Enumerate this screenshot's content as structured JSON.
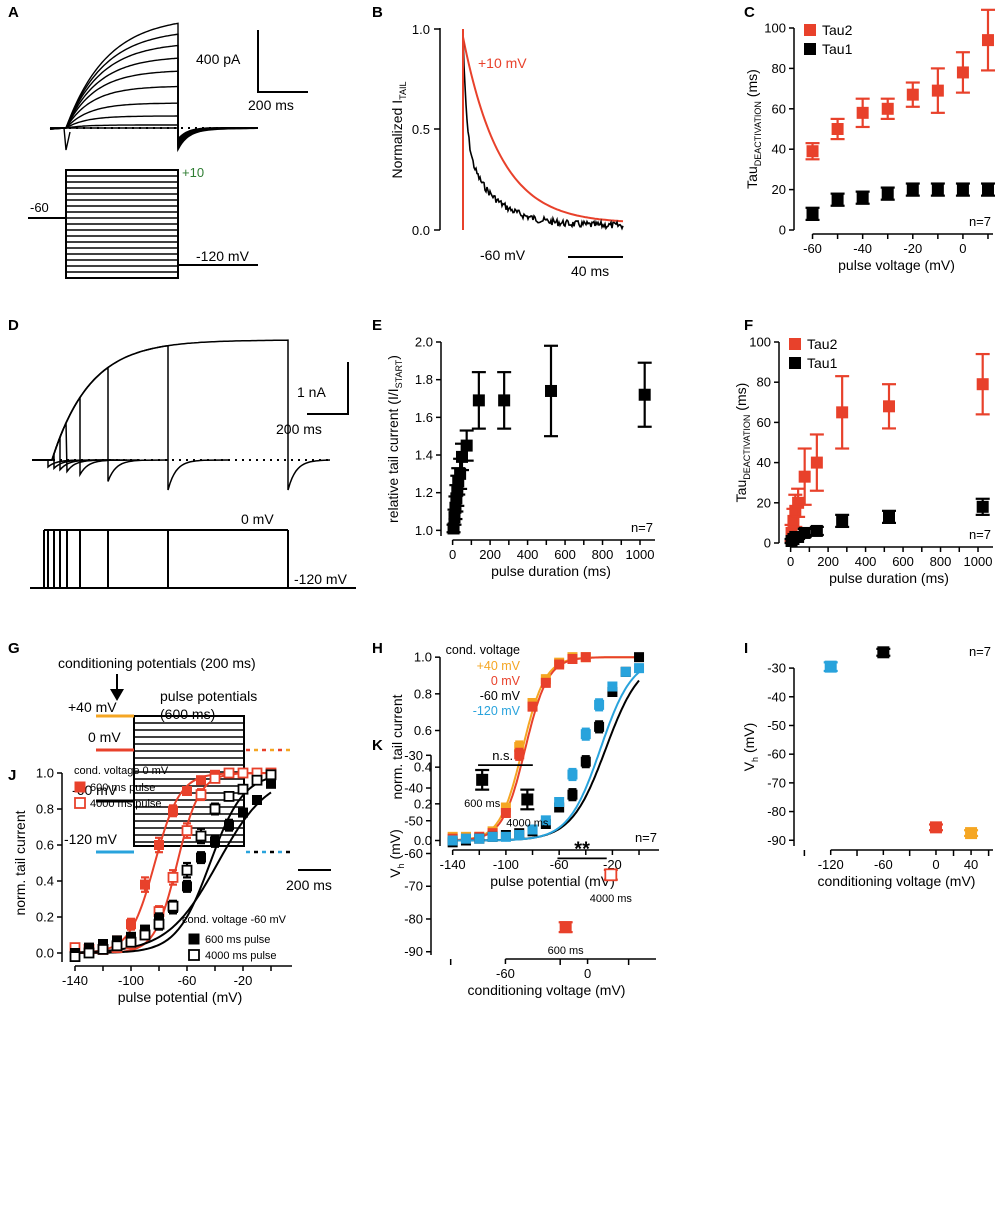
{
  "panels": {
    "A": {
      "label": "A",
      "scale_current": "400 pA",
      "scale_time": "200 ms",
      "v_hold": "-60",
      "v_top": "+10",
      "v_tail": "-120 mV"
    },
    "B": {
      "label": "B",
      "title": "Normalized I",
      "title_sub": "TAIL",
      "y_ticks": [
        "0.0",
        "0.5",
        "1.0"
      ],
      "trace_red": "+10 mV",
      "trace_black": "-60 mV",
      "scale_time": "40 ms"
    },
    "D": {
      "label": "D",
      "scale_current": "1 nA",
      "scale_time": "200 ms",
      "v_top": "0 mV",
      "v_tail": "-120 mV"
    },
    "G": {
      "label": "G",
      "conditioning": "conditioning potentials (200 ms)",
      "pulse1": "pulse potentials",
      "pulse2": "(600 ms)",
      "v40": "+40 mV",
      "v0": "0 mV",
      "vm60": "-60 mV",
      "vm120": "-120 mV",
      "scale_time": "200 ms"
    }
  },
  "colors": {
    "red": "#e8412b",
    "orange": "#f5a623",
    "blue": "#29a3dc",
    "black": "#000000"
  },
  "chart_data": [
    {
      "id": "C",
      "type": "scatter",
      "label": "C",
      "xlabel": "pulse voltage (mV)",
      "ylabel": "Tau",
      "ylabel_sub": "DEACTIVATION",
      "ylabel_unit": " (ms)",
      "xlim": [
        -65,
        12
      ],
      "ylim": [
        0,
        100
      ],
      "x_ticks": [
        -60,
        -40,
        -20,
        0
      ],
      "y_ticks": [
        0,
        20,
        40,
        60,
        80,
        100
      ],
      "n": "n=7",
      "legend": [
        "Tau2",
        "Tau1"
      ],
      "series": [
        {
          "name": "Tau2",
          "color": "red",
          "marker": "filled",
          "x": [
            -60,
            -50,
            -40,
            -30,
            -20,
            -10,
            0,
            10
          ],
          "y": [
            39,
            50,
            58,
            60,
            67,
            69,
            78,
            94
          ],
          "err": [
            4,
            5,
            7,
            5,
            6,
            11,
            10,
            15
          ]
        },
        {
          "name": "Tau1",
          "color": "black",
          "marker": "filled",
          "x": [
            -60,
            -50,
            -40,
            -30,
            -20,
            -10,
            0,
            10
          ],
          "y": [
            8,
            15,
            16,
            18,
            20,
            20,
            20,
            20
          ],
          "err": [
            3,
            3,
            3,
            3,
            3,
            3,
            3,
            3
          ]
        }
      ]
    },
    {
      "id": "E",
      "type": "scatter",
      "label": "E",
      "xlabel": "pulse duration (ms)",
      "ylabel": "relative tail current (I/I",
      "ylabel_sub": "START",
      "ylabel_unit": ")",
      "xlim": [
        -30,
        1080
      ],
      "ylim": [
        0.97,
        2.0
      ],
      "x_ticks": [
        0,
        200,
        400,
        600,
        800,
        1000
      ],
      "y_ticks": [
        1.0,
        1.2,
        1.4,
        1.6,
        1.8,
        2.0
      ],
      "n": "n=7",
      "series": [
        {
          "name": "relative tail current",
          "color": "black",
          "marker": "filled",
          "x": [
            5,
            10,
            15,
            20,
            25,
            30,
            40,
            50,
            75,
            140,
            275,
            525,
            1025
          ],
          "y": [
            1.01,
            1.07,
            1.12,
            1.17,
            1.21,
            1.26,
            1.3,
            1.39,
            1.45,
            1.69,
            1.69,
            1.74,
            1.72
          ],
          "err": [
            0.02,
            0.04,
            0.06,
            0.07,
            0.08,
            0.07,
            0.08,
            0.07,
            0.08,
            0.15,
            0.15,
            0.24,
            0.17
          ]
        }
      ]
    },
    {
      "id": "F",
      "type": "scatter",
      "label": "F",
      "xlabel": "pulse duration (ms)",
      "ylabel": "Tau",
      "ylabel_sub": "DEACTIVATION",
      "ylabel_unit": " (ms)",
      "xlim": [
        -30,
        1080
      ],
      "ylim": [
        0,
        100
      ],
      "x_ticks": [
        0,
        200,
        400,
        600,
        800,
        1000
      ],
      "y_ticks": [
        0,
        20,
        40,
        60,
        80,
        100
      ],
      "n": "n=7",
      "legend": [
        "Tau2",
        "Tau1"
      ],
      "series": [
        {
          "name": "Tau2",
          "color": "red",
          "marker": "filled",
          "x": [
            5,
            15,
            25,
            40,
            75,
            140,
            275,
            525,
            1025
          ],
          "y": [
            5,
            11,
            16,
            20,
            33,
            40,
            65,
            68,
            79
          ],
          "err": [
            4,
            6,
            8,
            7,
            14,
            14,
            18,
            11,
            15
          ]
        },
        {
          "name": "Tau1",
          "color": "black",
          "marker": "filled",
          "x": [
            5,
            15,
            25,
            40,
            75,
            140,
            275,
            525,
            1025
          ],
          "y": [
            1,
            2,
            3,
            3,
            5,
            6,
            11,
            13,
            18
          ],
          "err": [
            1,
            1,
            1,
            1,
            2,
            2,
            3,
            3,
            4
          ]
        }
      ]
    },
    {
      "id": "H",
      "type": "line",
      "label": "H",
      "xlabel": "pulse potential (mV)",
      "ylabel": "norm. tail current",
      "xlim": [
        -145,
        15
      ],
      "ylim": [
        -0.03,
        1.05
      ],
      "x_ticks": [
        -140,
        -100,
        -60,
        -20
      ],
      "y_ticks": [
        0.0,
        0.2,
        0.4,
        0.6,
        0.8,
        1.0
      ],
      "n": "n=7",
      "legend_title": "cond. voltage",
      "legend": [
        "+40 mV",
        "0 mV",
        "-60 mV",
        "-120 mV"
      ],
      "series": [
        {
          "name": "+40 mV",
          "color": "orange",
          "marker": "filled",
          "fit": {
            "vh": -87.5,
            "k": 8.5
          },
          "x": [
            -140,
            -130,
            -120,
            -110,
            -100,
            -90,
            -80,
            -70,
            -60,
            -50,
            -40
          ],
          "y": [
            0.02,
            0.02,
            0.02,
            0.05,
            0.18,
            0.51,
            0.75,
            0.88,
            0.97,
            1.0,
            1.0
          ],
          "err": [
            0.01,
            0.01,
            0.01,
            0.01,
            0.02,
            0.03,
            0.02,
            0.02,
            0.01,
            0.01,
            0.01
          ]
        },
        {
          "name": "0 mV",
          "color": "red",
          "marker": "filled",
          "fit": {
            "vh": -85.5,
            "k": 8.5
          },
          "x": [
            -140,
            -130,
            -120,
            -110,
            -100,
            -90,
            -80,
            -70,
            -60,
            -50,
            -40
          ],
          "y": [
            0.01,
            0.01,
            0.02,
            0.04,
            0.15,
            0.47,
            0.73,
            0.86,
            0.96,
            0.99,
            1.0
          ],
          "err": [
            0.01,
            0.01,
            0.01,
            0.01,
            0.02,
            0.03,
            0.02,
            0.02,
            0.01,
            0.01,
            0.01
          ]
        },
        {
          "name": "-60 mV",
          "color": "black",
          "marker": "filled",
          "fit": {
            "vh": -25,
            "k": 13
          },
          "x": [
            -140,
            -130,
            -120,
            -110,
            -100,
            -90,
            -80,
            -70,
            -60,
            -50,
            -40,
            -30,
            -20,
            -10,
            0
          ],
          "y": [
            -0.01,
            0.0,
            0.01,
            0.02,
            0.03,
            0.04,
            0.05,
            0.09,
            0.18,
            0.25,
            0.43,
            0.62,
            0.81,
            0.92,
            1.0
          ],
          "err": [
            0.01,
            0.01,
            0.01,
            0.01,
            0.01,
            0.01,
            0.01,
            0.02,
            0.02,
            0.03,
            0.03,
            0.03,
            0.02,
            0.02,
            0.01
          ]
        },
        {
          "name": "-120 mV",
          "color": "blue",
          "marker": "filled",
          "fit": {
            "vh": -29,
            "k": 12
          },
          "x": [
            -140,
            -130,
            -120,
            -110,
            -100,
            -90,
            -80,
            -70,
            -60,
            -50,
            -40,
            -30,
            -20,
            -10,
            0
          ],
          "y": [
            0.0,
            0.01,
            0.01,
            0.02,
            0.02,
            0.03,
            0.06,
            0.11,
            0.21,
            0.36,
            0.58,
            0.74,
            0.84,
            0.92,
            0.94
          ],
          "err": [
            0.01,
            0.01,
            0.01,
            0.01,
            0.01,
            0.01,
            0.01,
            0.02,
            0.02,
            0.03,
            0.03,
            0.03,
            0.02,
            0.02,
            0.02
          ]
        }
      ]
    },
    {
      "id": "I",
      "type": "scatter",
      "label": "I",
      "xlabel": "conditioning voltage (mV)",
      "ylabel": "V",
      "ylabel_sub": "h",
      "ylabel_unit": " (mV)",
      "xlim": [
        -155,
        65
      ],
      "ylim": [
        -92,
        -23
      ],
      "x_ticks": [
        -120,
        -60,
        0,
        40
      ],
      "y_ticks": [
        -90,
        -80,
        -70,
        -60,
        -50,
        -40,
        -30
      ],
      "n": "n=7",
      "series": [
        {
          "name": "-120 mV",
          "color": "blue",
          "marker": "filled",
          "x": [
            -120
          ],
          "y": [
            -29.5
          ],
          "err": [
            1.5
          ]
        },
        {
          "name": "-60 mV",
          "color": "black",
          "marker": "filled",
          "x": [
            -60
          ],
          "y": [
            -24.5
          ],
          "err": [
            1.2
          ]
        },
        {
          "name": "0 mV",
          "color": "red",
          "marker": "filled",
          "x": [
            0
          ],
          "y": [
            -85.5
          ],
          "err": [
            1.0
          ]
        },
        {
          "name": "+40 mV",
          "color": "orange",
          "marker": "filled",
          "x": [
            40
          ],
          "y": [
            -87.5
          ],
          "err": [
            1.0
          ]
        }
      ]
    },
    {
      "id": "J",
      "type": "line",
      "label": "J",
      "xlabel": "pulse potential (mV)",
      "ylabel": "norm. tail current",
      "xlim": [
        -145,
        15
      ],
      "ylim": [
        -0.05,
        1.05
      ],
      "x_ticks": [
        -140,
        -100,
        -60,
        -20
      ],
      "y_ticks": [
        0.0,
        0.2,
        0.4,
        0.6,
        0.8,
        1.0
      ],
      "legend_title_top": "cond. voltage 0 mV",
      "legend_title_bottom": "cond. voltage -60 mV",
      "legend": [
        "600 ms pulse",
        "4000 ms pulse",
        "600 ms pulse",
        "4000 ms pulse"
      ],
      "series": [
        {
          "name": "0 mV 600 ms pulse",
          "color": "red",
          "marker": "filled",
          "fit": {
            "vh": -83,
            "k": 9
          },
          "x": [
            -140,
            -130,
            -120,
            -110,
            -100,
            -90,
            -80,
            -70,
            -60,
            -50,
            -40,
            -30,
            -20,
            -10,
            0
          ],
          "y": [
            0.02,
            0.02,
            0.04,
            0.07,
            0.16,
            0.38,
            0.6,
            0.79,
            0.9,
            0.96,
            0.99,
            1.0,
            1.0,
            1.0,
            1.0
          ],
          "err": [
            0.01,
            0.01,
            0.01,
            0.01,
            0.03,
            0.04,
            0.04,
            0.03,
            0.02,
            0.01,
            0.01,
            0.01,
            0.01,
            0.01,
            0.01
          ]
        },
        {
          "name": "0 mV 4000 ms pulse",
          "color": "red",
          "marker": "open",
          "fit": {
            "vh": -67,
            "k": 8
          },
          "x": [
            -140,
            -130,
            -120,
            -110,
            -100,
            -90,
            -80,
            -70,
            -60,
            -50,
            -40,
            -30,
            -20,
            -10,
            0
          ],
          "y": [
            0.03,
            0.02,
            0.02,
            0.03,
            0.05,
            0.1,
            0.23,
            0.42,
            0.68,
            0.88,
            0.97,
            1.0,
            1.0,
            1.0,
            1.0
          ],
          "err": [
            0.01,
            0.01,
            0.01,
            0.01,
            0.01,
            0.02,
            0.03,
            0.04,
            0.04,
            0.03,
            0.02,
            0.01,
            0.01,
            0.01,
            0.01
          ]
        },
        {
          "name": "-60 mV 600 ms pulse",
          "color": "black",
          "marker": "filled",
          "fit": {
            "vh": -38,
            "k": 18
          },
          "x": [
            -140,
            -130,
            -120,
            -110,
            -100,
            -90,
            -80,
            -70,
            -60,
            -50,
            -40,
            -30,
            -20,
            -10,
            0
          ],
          "y": [
            0.0,
            0.03,
            0.05,
            0.07,
            0.09,
            0.13,
            0.19,
            0.25,
            0.37,
            0.53,
            0.62,
            0.71,
            0.78,
            0.85,
            0.94
          ],
          "err": [
            0.02,
            0.02,
            0.02,
            0.02,
            0.02,
            0.02,
            0.03,
            0.03,
            0.03,
            0.03,
            0.03,
            0.03,
            0.02,
            0.02,
            0.02
          ]
        },
        {
          "name": "-60 mV 4000 ms pulse",
          "color": "black",
          "marker": "open",
          "fit": {
            "vh": -43.5,
            "k": 12
          },
          "x": [
            -140,
            -130,
            -120,
            -110,
            -100,
            -90,
            -80,
            -70,
            -60,
            -50,
            -40,
            -30,
            -20,
            -10,
            0
          ],
          "y": [
            -0.02,
            0.0,
            0.02,
            0.04,
            0.06,
            0.1,
            0.16,
            0.26,
            0.46,
            0.65,
            0.8,
            0.87,
            0.91,
            0.96,
            0.99
          ],
          "err": [
            0.02,
            0.02,
            0.02,
            0.02,
            0.02,
            0.02,
            0.03,
            0.03,
            0.04,
            0.04,
            0.03,
            0.02,
            0.02,
            0.02,
            0.02
          ]
        }
      ]
    },
    {
      "id": "K",
      "type": "scatter",
      "label": "K",
      "xlabel": "conditioning voltage (mV)",
      "ylabel": "V",
      "ylabel_sub": "h",
      "ylabel_unit": " (mV)",
      "xlim": [
        -110,
        50
      ],
      "ylim": [
        -91,
        -29
      ],
      "x_ticks": [
        -60,
        0
      ],
      "y_ticks": [
        -90,
        -80,
        -70,
        -60,
        -50,
        -40,
        -30
      ],
      "sig_ns": "n.s.",
      "sig_star": "**",
      "series": [
        {
          "name": "-60 mV 600 ms",
          "color": "black",
          "marker": "filled",
          "x": [
            -77
          ],
          "y": [
            -37.5
          ],
          "err": [
            3
          ],
          "point_label": "600 ms"
        },
        {
          "name": "-60 mV 4000 ms",
          "color": "black",
          "marker": "filled",
          "x": [
            -44
          ],
          "y": [
            -43.5
          ],
          "err": [
            3
          ],
          "point_label": "4000 ms"
        },
        {
          "name": "0 mV 600 ms",
          "color": "red",
          "marker": "filled",
          "x": [
            -16
          ],
          "y": [
            -82.5
          ],
          "err": [
            1.5
          ],
          "point_label": "600 ms"
        },
        {
          "name": "0 mV 4000 ms",
          "color": "red",
          "marker": "open",
          "x": [
            17
          ],
          "y": [
            -66.5
          ],
          "err": [
            1.5
          ],
          "point_label": "4000 ms"
        }
      ]
    }
  ]
}
